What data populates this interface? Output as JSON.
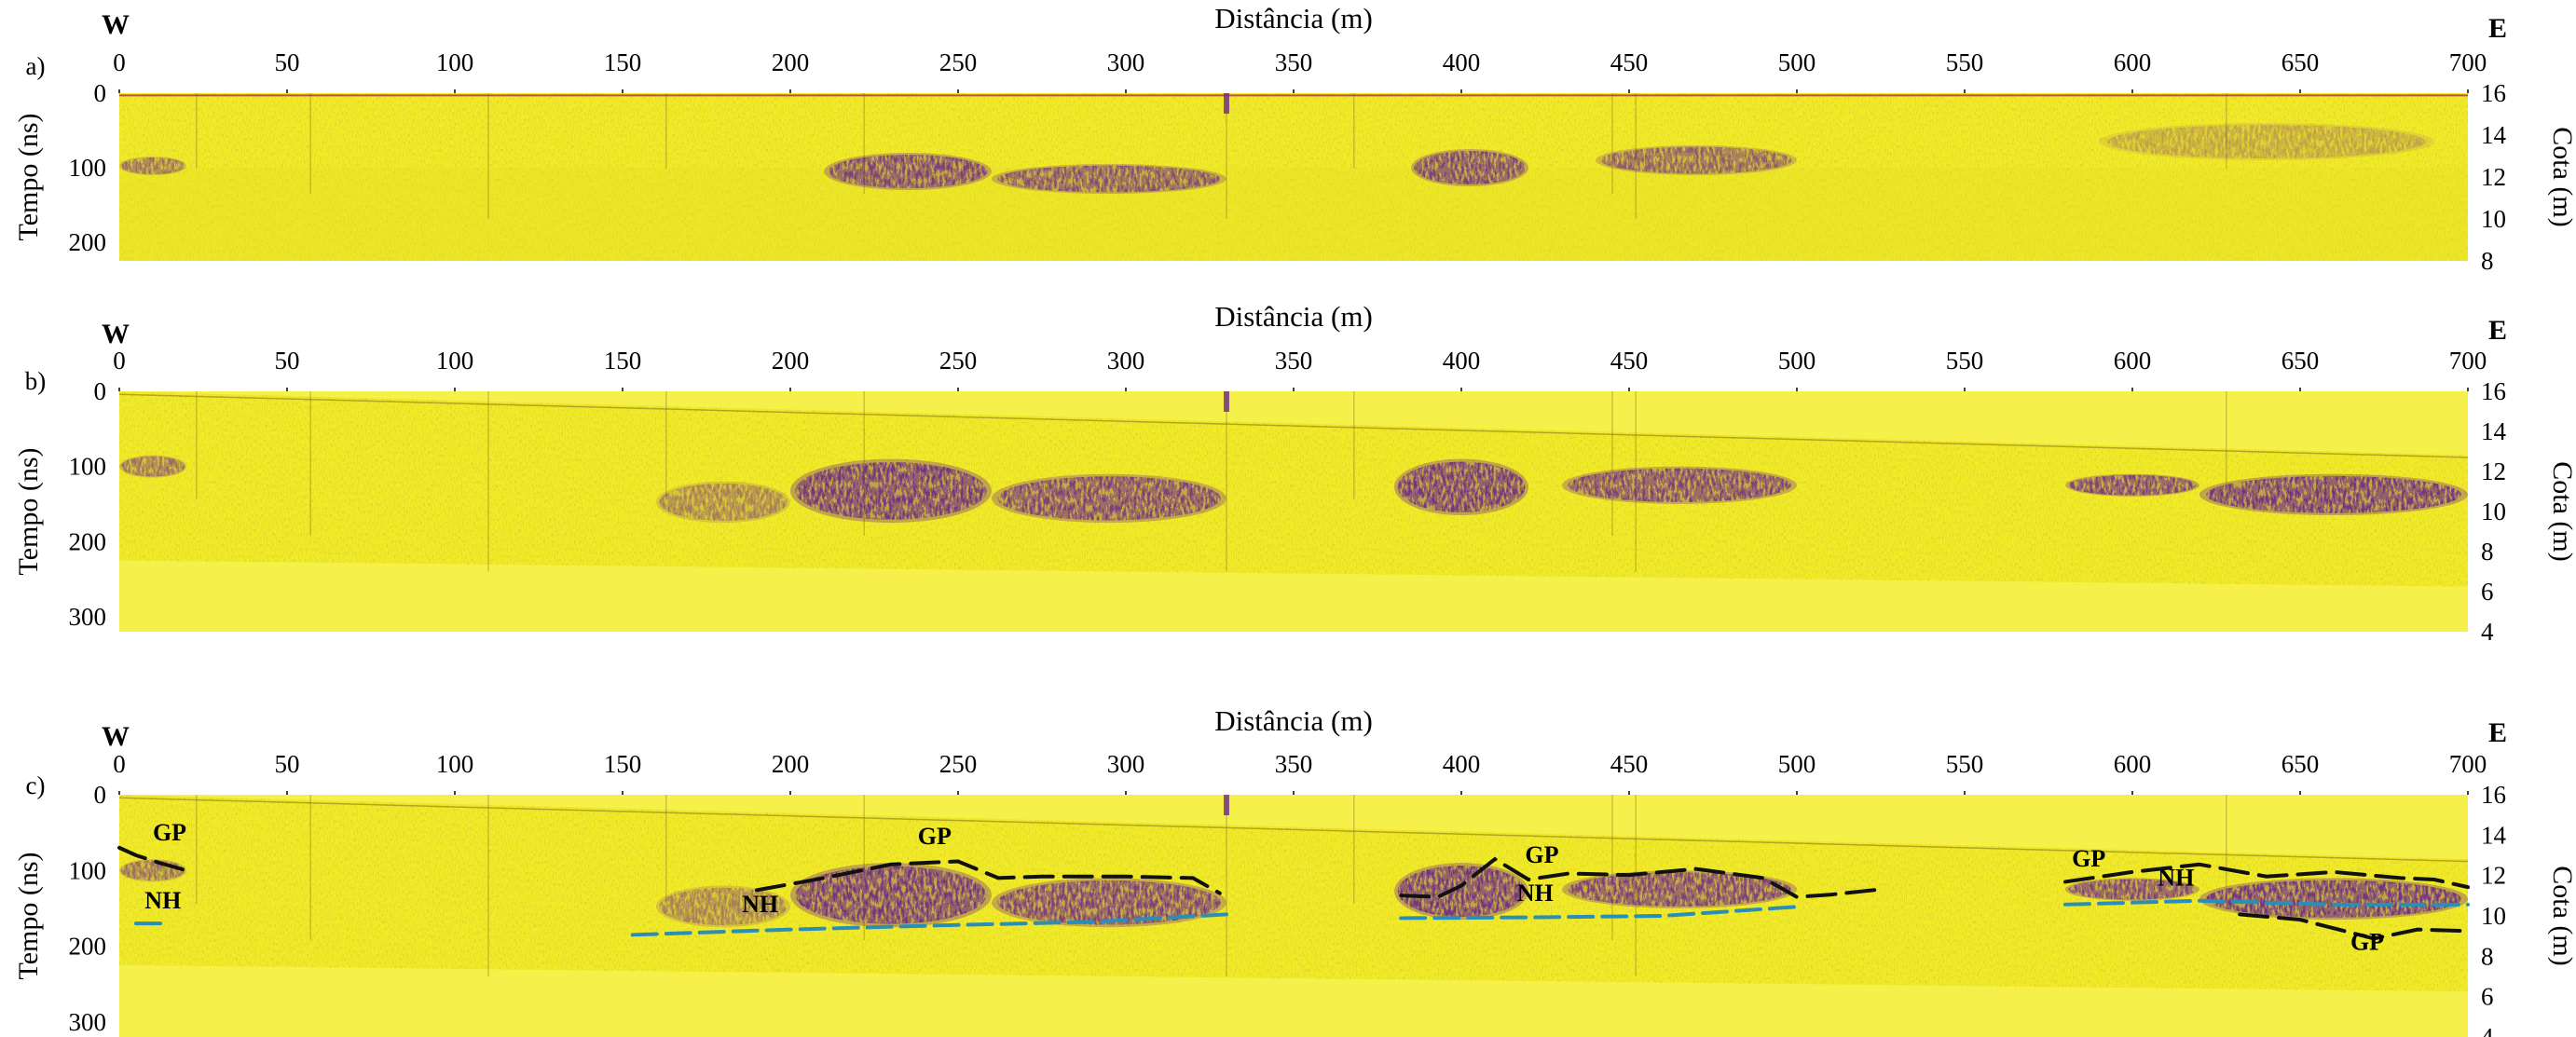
{
  "x_axis_title": "Distância (m)",
  "left_axis_title": "Tempo (ns)",
  "right_axis_title": "Cota (m)",
  "direction_west": "W",
  "direction_east": "E",
  "colors": {
    "background": "#f2eb27",
    "background_light": "#f6f04a",
    "reflector": "#6e2a85",
    "reflector_dark": "#3d1f4a",
    "surface_line": "#b03040",
    "gp_line": "#111111",
    "nh_line": "#2a8fb8"
  },
  "chart_data": [
    {
      "type": "heatmap",
      "panel": "a)",
      "title": "",
      "xlabel": "Distância (m)",
      "ylabel": "Tempo (ns)",
      "y2label": "Cota (m)",
      "xlim": [
        0,
        700
      ],
      "ylim": [
        0,
        225
      ],
      "y2lim": [
        8,
        16
      ],
      "x_ticks": [
        0,
        50,
        100,
        150,
        200,
        250,
        300,
        350,
        400,
        450,
        500,
        550,
        600,
        650,
        700
      ],
      "y_ticks": [
        0,
        100,
        200
      ],
      "y2_ticks": [
        16,
        14,
        12,
        10,
        8
      ],
      "reflector_zones": [
        {
          "x": [
            0,
            20
          ],
          "t": [
            85,
            110
          ],
          "intensity": 0.6
        },
        {
          "x": [
            210,
            260
          ],
          "t": [
            80,
            130
          ],
          "intensity": 0.9
        },
        {
          "x": [
            260,
            330
          ],
          "t": [
            95,
            135
          ],
          "intensity": 0.8
        },
        {
          "x": [
            385,
            420
          ],
          "t": [
            75,
            125
          ],
          "intensity": 0.9
        },
        {
          "x": [
            440,
            500
          ],
          "t": [
            70,
            110
          ],
          "intensity": 0.7
        },
        {
          "x": [
            590,
            690
          ],
          "t": [
            40,
            90
          ],
          "intensity": 0.3
        }
      ],
      "annotations": []
    },
    {
      "type": "heatmap",
      "panel": "b)",
      "title": "",
      "xlabel": "Distância (m)",
      "ylabel": "Tempo (ns)",
      "y2label": "Cota (m)",
      "xlim": [
        0,
        700
      ],
      "ylim": [
        0,
        320
      ],
      "y2lim": [
        4,
        16
      ],
      "x_ticks": [
        0,
        50,
        100,
        150,
        200,
        250,
        300,
        350,
        400,
        450,
        500,
        550,
        600,
        650,
        700
      ],
      "y_ticks": [
        0,
        100,
        200,
        300
      ],
      "y2_ticks": [
        16,
        14,
        12,
        10,
        8,
        6,
        4
      ],
      "reflector_zones": [
        {
          "x": [
            0,
            20
          ],
          "t": [
            85,
            115
          ],
          "intensity": 0.6
        },
        {
          "x": [
            160,
            200
          ],
          "t": [
            120,
            175
          ],
          "intensity": 0.5
        },
        {
          "x": [
            200,
            260
          ],
          "t": [
            90,
            175
          ],
          "intensity": 1.0
        },
        {
          "x": [
            260,
            330
          ],
          "t": [
            110,
            175
          ],
          "intensity": 0.9
        },
        {
          "x": [
            380,
            420
          ],
          "t": [
            90,
            165
          ],
          "intensity": 1.0
        },
        {
          "x": [
            430,
            500
          ],
          "t": [
            100,
            150
          ],
          "intensity": 0.9
        },
        {
          "x": [
            580,
            620
          ],
          "t": [
            110,
            140
          ],
          "intensity": 0.9
        },
        {
          "x": [
            620,
            700
          ],
          "t": [
            110,
            165
          ],
          "intensity": 1.0
        }
      ],
      "annotations": []
    },
    {
      "type": "heatmap",
      "panel": "c)",
      "title": "",
      "xlabel": "Distância (m)",
      "ylabel": "Tempo (ns)",
      "y2label": "Cota (m)",
      "xlim": [
        0,
        700
      ],
      "ylim": [
        0,
        320
      ],
      "y2lim": [
        4,
        16
      ],
      "x_ticks": [
        0,
        50,
        100,
        150,
        200,
        250,
        300,
        350,
        400,
        450,
        500,
        550,
        600,
        650,
        700
      ],
      "y_ticks": [
        0,
        100,
        200,
        300
      ],
      "y2_ticks": [
        16,
        14,
        12,
        10,
        8,
        6,
        4
      ],
      "reflector_zones": [
        {
          "x": [
            0,
            20
          ],
          "t": [
            85,
            115
          ],
          "intensity": 0.6
        },
        {
          "x": [
            160,
            200
          ],
          "t": [
            120,
            175
          ],
          "intensity": 0.5
        },
        {
          "x": [
            200,
            260
          ],
          "t": [
            90,
            175
          ],
          "intensity": 1.0
        },
        {
          "x": [
            260,
            330
          ],
          "t": [
            110,
            175
          ],
          "intensity": 0.9
        },
        {
          "x": [
            380,
            420
          ],
          "t": [
            90,
            165
          ],
          "intensity": 1.0
        },
        {
          "x": [
            430,
            500
          ],
          "t": [
            100,
            150
          ],
          "intensity": 0.9
        },
        {
          "x": [
            580,
            620
          ],
          "t": [
            110,
            140
          ],
          "intensity": 0.9
        },
        {
          "x": [
            620,
            700
          ],
          "t": [
            110,
            165
          ],
          "intensity": 1.0
        }
      ],
      "interpretation_lines": [
        {
          "label": "GP",
          "style": "black-dashed",
          "x": [
            0,
            5,
            12,
            20
          ],
          "t": [
            70,
            80,
            90,
            100
          ]
        },
        {
          "label": "GP",
          "style": "black-dashed",
          "x": [
            190,
            210,
            230,
            250,
            262,
            275,
            300,
            320,
            328
          ],
          "t": [
            126,
            110,
            92,
            88,
            110,
            108,
            108,
            110,
            130
          ]
        },
        {
          "label": "GP",
          "style": "black-dashed",
          "x": [
            382,
            393,
            400,
            410,
            420,
            432,
            450,
            470,
            490,
            500,
            510,
            525
          ],
          "t": [
            133,
            135,
            120,
            85,
            112,
            104,
            106,
            98,
            110,
            135,
            132,
            125
          ]
        },
        {
          "label": "GP",
          "style": "black-dashed",
          "x": [
            580,
            600,
            620,
            640,
            660,
            680,
            690,
            700
          ],
          "t": [
            115,
            102,
            92,
            108,
            102,
            110,
            112,
            122
          ]
        },
        {
          "label": "GP",
          "style": "black-dashed",
          "x": [
            632,
            650,
            672,
            685,
            700
          ],
          "t": [
            158,
            165,
            190,
            178,
            180
          ]
        },
        {
          "label": "NH",
          "style": "blue-dashed",
          "x": [
            5,
            15
          ],
          "t": [
            170,
            170
          ]
        },
        {
          "label": "NH",
          "style": "blue-dashed",
          "x": [
            153,
            200,
            250,
            290,
            330
          ],
          "t": [
            185,
            178,
            172,
            168,
            158
          ]
        },
        {
          "label": "NH",
          "style": "blue-dashed",
          "x": [
            382,
            420,
            460,
            500
          ],
          "t": [
            163,
            162,
            160,
            148
          ]
        },
        {
          "label": "NH",
          "style": "blue-dashed",
          "x": [
            580,
            620,
            660,
            700
          ],
          "t": [
            145,
            140,
            145,
            145
          ]
        }
      ],
      "annotations": [
        {
          "text": "GP",
          "x": 15,
          "t": 60
        },
        {
          "text": "NH",
          "x": 13,
          "t": 150
        },
        {
          "text": "GP",
          "x": 243,
          "t": 65
        },
        {
          "text": "NH",
          "x": 191,
          "t": 155
        },
        {
          "text": "GP",
          "x": 424,
          "t": 90
        },
        {
          "text": "NH",
          "x": 422,
          "t": 140
        },
        {
          "text": "GP",
          "x": 587,
          "t": 95
        },
        {
          "text": "NH",
          "x": 613,
          "t": 120
        },
        {
          "text": "GP",
          "x": 670,
          "t": 205
        }
      ]
    }
  ]
}
